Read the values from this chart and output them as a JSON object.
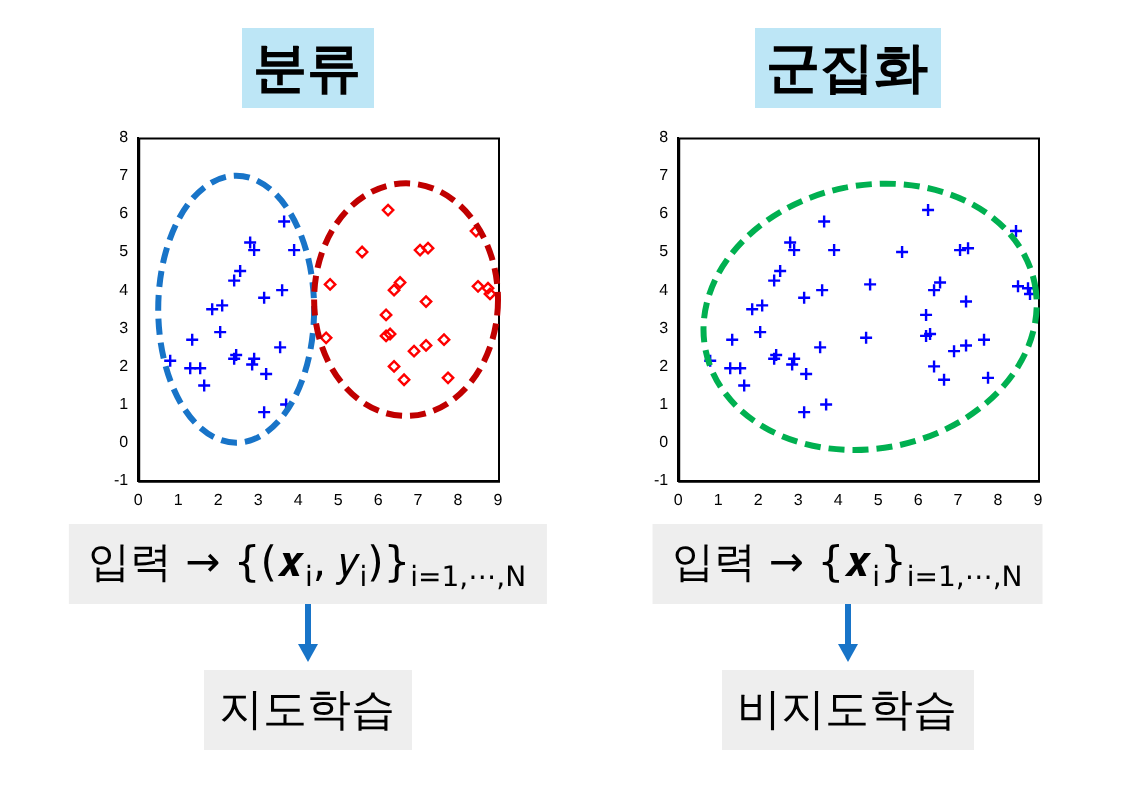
{
  "chart_data": [
    {
      "type": "scatter",
      "title": "분류",
      "xlim": [
        0,
        9
      ],
      "ylim": [
        -1,
        8
      ],
      "xticks": [
        0,
        1,
        2,
        3,
        4,
        5,
        6,
        7,
        8,
        9
      ],
      "yticks": [
        -1,
        0,
        1,
        2,
        3,
        4,
        5,
        6,
        7,
        8
      ],
      "grid": false,
      "legend": false,
      "annotations": [
        "입력 → {(𝒙$_{i}$, 𝑦$_{i}$)}$_{i=1,⋯,N}$",
        "지도학습"
      ],
      "series": [
        {
          "color": "#0000ff",
          "marker": "cross",
          "x": [
            0.8,
            1.35,
            1.3,
            1.55,
            1.65,
            1.85,
            2.05,
            2.1,
            2.4,
            2.4,
            2.45,
            2.55,
            2.8,
            2.9,
            2.85,
            2.9,
            3.15,
            3.2,
            3.15,
            3.55,
            3.6,
            3.65,
            3.7,
            3.9
          ],
          "values": [
            2.15,
            2.7,
            1.95,
            1.95,
            1.5,
            3.5,
            2.9,
            3.6,
            4.25,
            2.2,
            2.3,
            4.5,
            5.25,
            5.05,
            2.05,
            2.2,
            3.8,
            1.8,
            0.8,
            2.5,
            4.0,
            5.8,
            1.0,
            5.05
          ]
        },
        {
          "color": "#ff0000",
          "marker": "diamond",
          "x": [
            4.7,
            4.8,
            5.6,
            6.25,
            6.2,
            6.2,
            6.3,
            6.4,
            6.4,
            6.55,
            6.65,
            6.9,
            7.05,
            7.2,
            7.25,
            7.2,
            7.65,
            7.75,
            8.45,
            8.5,
            8.75,
            8.8
          ],
          "values": [
            2.75,
            4.15,
            5.0,
            6.1,
            3.35,
            2.8,
            2.85,
            4.0,
            2.0,
            4.2,
            1.65,
            2.4,
            5.05,
            3.7,
            5.1,
            2.55,
            2.7,
            1.7,
            5.55,
            4.1,
            4.05,
            3.9
          ]
        }
      ]
    },
    {
      "type": "scatter",
      "title": "군집화",
      "xlim": [
        0,
        9
      ],
      "ylim": [
        -1,
        8
      ],
      "xticks": [
        0,
        1,
        2,
        3,
        4,
        5,
        6,
        7,
        8,
        9
      ],
      "yticks": [
        -1,
        0,
        1,
        2,
        3,
        4,
        5,
        6,
        7,
        8
      ],
      "grid": false,
      "legend": false,
      "annotations": [
        "입력 → {𝒙$_{i}$}$_{i=1,⋯,N}$",
        "비지도학습"
      ],
      "series": [
        {
          "color": "#0000ff",
          "marker": "cross",
          "x": [
            0.8,
            1.35,
            1.3,
            1.55,
            1.65,
            1.85,
            2.05,
            2.1,
            2.4,
            2.4,
            2.45,
            2.55,
            2.8,
            2.9,
            2.85,
            2.9,
            3.15,
            3.2,
            3.15,
            3.55,
            3.6,
            3.65,
            3.7,
            3.9,
            4.7,
            4.8,
            5.6,
            6.25,
            6.2,
            6.2,
            6.3,
            6.4,
            6.4,
            6.55,
            6.65,
            6.9,
            7.05,
            7.2,
            7.25,
            7.2,
            7.65,
            7.75,
            8.45,
            8.5,
            8.75,
            8.8
          ],
          "values": [
            2.15,
            2.7,
            1.95,
            1.95,
            1.5,
            3.5,
            2.9,
            3.6,
            4.25,
            2.2,
            2.3,
            4.5,
            5.25,
            5.05,
            2.05,
            2.2,
            3.8,
            1.8,
            0.8,
            2.5,
            4.0,
            5.8,
            1.0,
            5.05,
            2.75,
            4.15,
            5.0,
            6.1,
            3.35,
            2.8,
            2.85,
            4.0,
            2.0,
            4.2,
            1.65,
            2.4,
            5.05,
            3.7,
            5.1,
            2.55,
            2.7,
            1.7,
            5.55,
            4.1,
            4.05,
            3.9
          ]
        }
      ]
    }
  ]
}
